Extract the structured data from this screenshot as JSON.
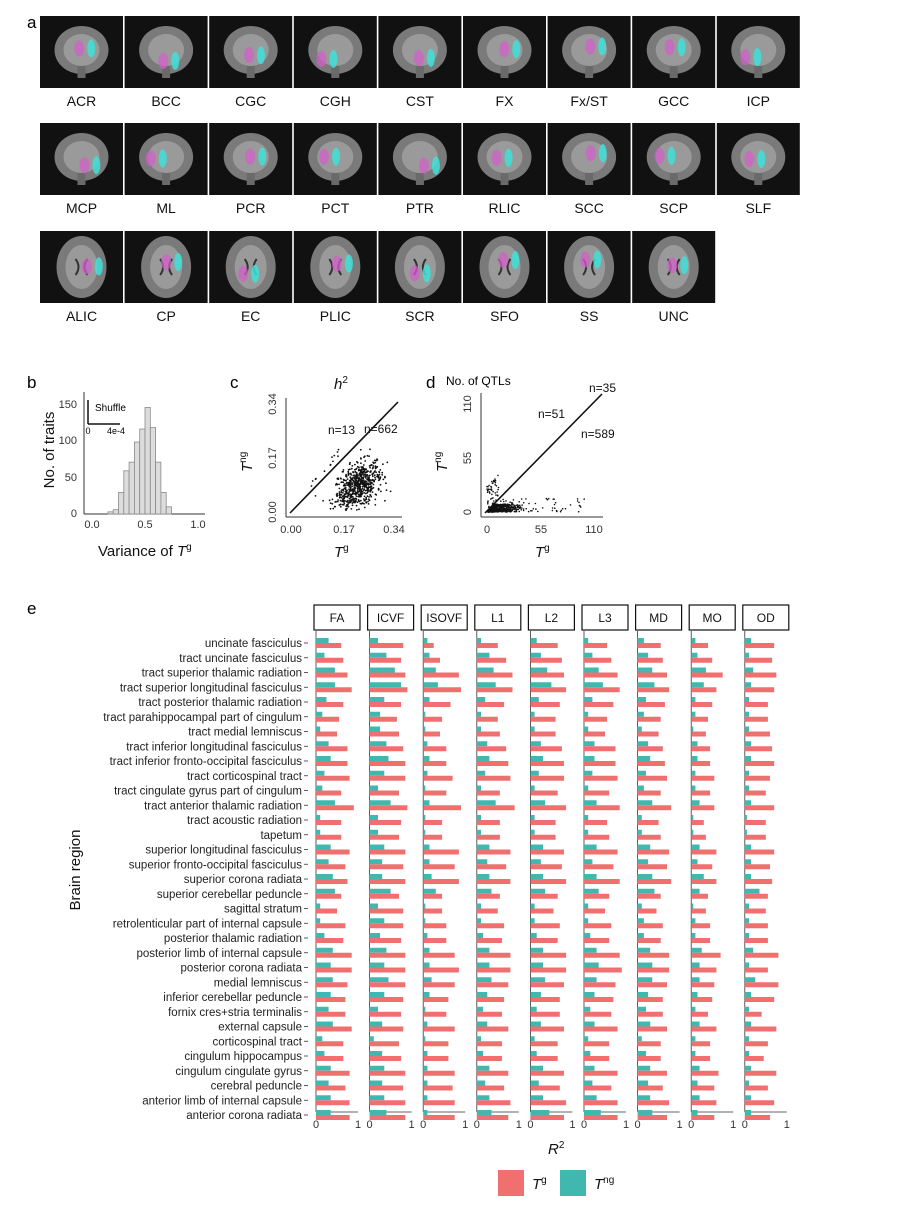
{
  "panel_a": {
    "label": "a",
    "tracts": [
      {
        "name": "ACR",
        "view": "coronal"
      },
      {
        "name": "BCC",
        "view": "coronal"
      },
      {
        "name": "CGC",
        "view": "coronal"
      },
      {
        "name": "CGH",
        "view": "coronal"
      },
      {
        "name": "CST",
        "view": "coronal"
      },
      {
        "name": "FX",
        "view": "coronal"
      },
      {
        "name": "Fx/ST",
        "view": "coronal"
      },
      {
        "name": "GCC",
        "view": "coronal"
      },
      {
        "name": "ICP",
        "view": "coronal"
      },
      {
        "name": "MCP",
        "view": "coronal"
      },
      {
        "name": "ML",
        "view": "coronal"
      },
      {
        "name": "PCR",
        "view": "coronal"
      },
      {
        "name": "PCT",
        "view": "coronal"
      },
      {
        "name": "PTR",
        "view": "coronal"
      },
      {
        "name": "RLIC",
        "view": "coronal"
      },
      {
        "name": "SCC",
        "view": "coronal"
      },
      {
        "name": "SCP",
        "view": "coronal"
      },
      {
        "name": "SLF",
        "view": "coronal"
      },
      {
        "name": "ALIC",
        "view": "axial"
      },
      {
        "name": "CP",
        "view": "axial"
      },
      {
        "name": "EC",
        "view": "axial"
      },
      {
        "name": "PLIC",
        "view": "axial"
      },
      {
        "name": "SCR",
        "view": "axial"
      },
      {
        "name": "SFO",
        "view": "axial"
      },
      {
        "name": "SS",
        "view": "axial"
      },
      {
        "name": "UNC",
        "view": "axial"
      }
    ],
    "colors": {
      "background": "#111111",
      "tissue": "#7a7a7a",
      "magenta": "#d060c8",
      "cyan": "#40e0d8"
    }
  },
  "panel_b": {
    "label": "b",
    "ylabel": "No. of traits",
    "xlabel_text": "Variance of ",
    "xlabel_sym": "T",
    "xlabel_sup": "g",
    "inset_label": "Shuffle",
    "inset_ticks": [
      "0",
      "4e-4"
    ],
    "y_ticks": [
      "0",
      "50",
      "100",
      "150"
    ],
    "x_ticks": [
      "0.0",
      "0.5",
      "1.0"
    ]
  },
  "panel_c": {
    "label": "c",
    "title_sym": "h",
    "title_sup": "2",
    "xlabel_sym": "T",
    "xlabel_sup": "g",
    "ylabel_sym": "T",
    "ylabel_sup": "ng",
    "ticks": [
      "0.00",
      "0.17",
      "0.34"
    ],
    "n_above": "n=13",
    "n_below": "n=662"
  },
  "panel_d": {
    "label": "d",
    "title": "No. of QTLs",
    "xlabel_sym": "T",
    "xlabel_sup": "g",
    "ylabel_sym": "T",
    "ylabel_sup": "ng",
    "ticks": [
      "0",
      "55",
      "110"
    ],
    "n_above": "n=51",
    "n_below": "n=589",
    "n_equal": "n=35"
  },
  "panel_e": {
    "label": "e",
    "ylabel": "Brain region",
    "xlabel_sym": "R",
    "xlabel_sup": "2",
    "x_ticks": [
      "0",
      "1"
    ],
    "legend": [
      {
        "sym": "T",
        "sup": "g",
        "color": "#f07070"
      },
      {
        "sym": "T",
        "sup": "ng",
        "color": "#40b8b0"
      }
    ]
  },
  "chart_data": [
    {
      "type": "bar",
      "title": "",
      "xlabel": "Variance of T^g",
      "ylabel": "No. of traits",
      "xlim": [
        0,
        1.0
      ],
      "ylim": [
        0,
        150
      ],
      "bin_edges": [
        0.15,
        0.2,
        0.25,
        0.3,
        0.35,
        0.4,
        0.45,
        0.5,
        0.55,
        0.6,
        0.65,
        0.7,
        0.75
      ],
      "counts": [
        3,
        6,
        30,
        60,
        72,
        100,
        118,
        148,
        120,
        72,
        30,
        10
      ],
      "inset": {
        "label": "Shuffle",
        "x_ticks": [
          "0",
          "4e-4"
        ]
      }
    },
    {
      "type": "scatter",
      "title": "h2",
      "xlabel": "T^g",
      "ylabel": "T^ng",
      "xlim": [
        0,
        0.34
      ],
      "ylim": [
        0,
        0.34
      ],
      "n_above_diagonal": 13,
      "n_below_diagonal": 662,
      "reference_line": "y = x"
    },
    {
      "type": "scatter",
      "title": "No. of QTLs",
      "xlabel": "T^g",
      "ylabel": "T^ng",
      "xlim": [
        0,
        110
      ],
      "ylim": [
        0,
        110
      ],
      "n_above_diagonal": 51,
      "n_below_diagonal": 589,
      "n_on_diagonal": 35,
      "reference_line": "y = x"
    },
    {
      "type": "bar",
      "orientation": "horizontal",
      "xlabel": "R^2",
      "ylabel": "Brain region",
      "xlim": [
        0,
        1
      ],
      "facets": [
        "FA",
        "ICVF",
        "ISOVF",
        "L1",
        "L2",
        "L3",
        "MD",
        "MO",
        "OD"
      ],
      "regions": [
        "uncinate fasciculus",
        "tract uncinate fasciculus",
        "tract superior thalamic radiation",
        "tract superior longitudinal fasciculus",
        "tract posterior thalamic radiation",
        "tract parahippocampal part of cingulum",
        "tract medial lemniscus",
        "tract inferior longitudinal fasciculus",
        "tract inferior fronto-occipital fasciculus",
        "tract corticospinal tract",
        "tract cingulate gyrus part of cingulum",
        "tract anterior thalamic radiation",
        "tract acoustic radiation",
        "tapetum",
        "superior longitudinal fasciculus",
        "superior fronto-occipital fasciculus",
        "superior corona radiata",
        "superior cerebellar peduncle",
        "sagittal stratum",
        "retrolenticular part of internal capsule",
        "posterior thalamic radiation",
        "posterior limb of internal capsule",
        "posterior corona radiata",
        "medial lemniscus",
        "inferior cerebellar peduncle",
        "fornix cres+stria terminalis",
        "external capsule",
        "corticospinal tract",
        "cingulum hippocampus",
        "cingulum cingulate gyrus",
        "cerebral peduncle",
        "anterior limb of internal capsule",
        "anterior corona radiata"
      ],
      "series": [
        {
          "name": "T^g",
          "values": [
            [
              0.6,
              0.65,
              0.75,
              0.85,
              0.65,
              0.55,
              0.5,
              0.75,
              0.75,
              0.8,
              0.6,
              0.9,
              0.6,
              0.6,
              0.8,
              0.7,
              0.75,
              0.6,
              0.5,
              0.7,
              0.65,
              0.85,
              0.85,
              0.75,
              0.7,
              0.7,
              0.85,
              0.65,
              0.65,
              0.8,
              0.7,
              0.8,
              0.8
            ],
            [
              0.8,
              0.75,
              0.85,
              0.9,
              0.75,
              0.65,
              0.7,
              0.8,
              0.85,
              0.85,
              0.7,
              0.9,
              0.75,
              0.7,
              0.85,
              0.8,
              0.85,
              0.7,
              0.8,
              0.8,
              0.75,
              0.85,
              0.85,
              0.85,
              0.8,
              0.75,
              0.8,
              0.7,
              0.75,
              0.85,
              0.8,
              0.85,
              0.85
            ],
            [
              0.25,
              0.4,
              0.85,
              0.9,
              0.65,
              0.45,
              0.4,
              0.55,
              0.55,
              0.7,
              0.55,
              0.9,
              0.45,
              0.45,
              0.85,
              0.75,
              0.85,
              0.45,
              0.45,
              0.55,
              0.55,
              0.75,
              0.85,
              0.75,
              0.6,
              0.55,
              0.75,
              0.6,
              0.6,
              0.75,
              0.7,
              0.75,
              0.75
            ],
            [
              0.5,
              0.7,
              0.85,
              0.85,
              0.65,
              0.5,
              0.55,
              0.7,
              0.75,
              0.8,
              0.55,
              0.9,
              0.55,
              0.55,
              0.8,
              0.7,
              0.8,
              0.55,
              0.5,
              0.65,
              0.6,
              0.8,
              0.8,
              0.75,
              0.65,
              0.6,
              0.75,
              0.6,
              0.6,
              0.75,
              0.65,
              0.8,
              0.75
            ],
            [
              0.65,
              0.75,
              0.8,
              0.85,
              0.7,
              0.6,
              0.6,
              0.75,
              0.8,
              0.8,
              0.65,
              0.85,
              0.6,
              0.6,
              0.8,
              0.75,
              0.85,
              0.65,
              0.55,
              0.7,
              0.65,
              0.85,
              0.85,
              0.8,
              0.7,
              0.7,
              0.8,
              0.65,
              0.65,
              0.8,
              0.7,
              0.85,
              0.8
            ],
            [
              0.55,
              0.65,
              0.8,
              0.85,
              0.7,
              0.55,
              0.5,
              0.75,
              0.75,
              0.8,
              0.6,
              0.85,
              0.55,
              0.6,
              0.8,
              0.7,
              0.85,
              0.6,
              0.5,
              0.65,
              0.6,
              0.85,
              0.9,
              0.75,
              0.7,
              0.65,
              0.8,
              0.6,
              0.6,
              0.8,
              0.65,
              0.8,
              0.8
            ],
            [
              0.55,
              0.6,
              0.7,
              0.75,
              0.65,
              0.55,
              0.5,
              0.6,
              0.65,
              0.7,
              0.55,
              0.8,
              0.5,
              0.55,
              0.75,
              0.7,
              0.8,
              0.55,
              0.45,
              0.6,
              0.55,
              0.75,
              0.75,
              0.7,
              0.6,
              0.6,
              0.7,
              0.55,
              0.55,
              0.7,
              0.6,
              0.75,
              0.7
            ],
            [
              0.4,
              0.5,
              0.75,
              0.6,
              0.5,
              0.4,
              0.35,
              0.45,
              0.45,
              0.55,
              0.45,
              0.55,
              0.3,
              0.35,
              0.6,
              0.5,
              0.6,
              0.4,
              0.35,
              0.45,
              0.45,
              0.7,
              0.6,
              0.55,
              0.5,
              0.4,
              0.6,
              0.45,
              0.45,
              0.65,
              0.55,
              0.6,
              0.55
            ],
            [
              0.7,
              0.65,
              0.75,
              0.7,
              0.55,
              0.55,
              0.6,
              0.65,
              0.7,
              0.6,
              0.5,
              0.7,
              0.5,
              0.5,
              0.7,
              0.6,
              0.65,
              0.55,
              0.5,
              0.55,
              0.55,
              0.8,
              0.55,
              0.8,
              0.7,
              0.4,
              0.75,
              0.55,
              0.45,
              0.75,
              0.55,
              0.7,
              0.6
            ]
          ]
        },
        {
          "name": "T^ng",
          "values": [
            [
              0.3,
              0.2,
              0.45,
              0.45,
              0.25,
              0.15,
              0.1,
              0.3,
              0.35,
              0.2,
              0.15,
              0.45,
              0.1,
              0.1,
              0.35,
              0.3,
              0.4,
              0.45,
              0.1,
              0.1,
              0.2,
              0.4,
              0.35,
              0.4,
              0.35,
              0.3,
              0.4,
              0.15,
              0.2,
              0.35,
              0.3,
              0.35,
              0.35
            ],
            [
              0.2,
              0.4,
              0.6,
              0.75,
              0.35,
              0.25,
              0.25,
              0.4,
              0.45,
              0.35,
              0.2,
              0.5,
              0.2,
              0.2,
              0.35,
              0.3,
              0.3,
              0.5,
              0.2,
              0.35,
              0.25,
              0.4,
              0.35,
              0.45,
              0.35,
              0.2,
              0.3,
              0.1,
              0.3,
              0.35,
              0.3,
              0.35,
              0.4
            ],
            [
              0.1,
              0.15,
              0.3,
              0.35,
              0.15,
              0.05,
              0.05,
              0.1,
              0.15,
              0.1,
              0.05,
              0.15,
              0.05,
              0.05,
              0.15,
              0.15,
              0.2,
              0.3,
              0.05,
              0.05,
              0.1,
              0.15,
              0.15,
              0.2,
              0.15,
              0.05,
              0.1,
              0.05,
              0.1,
              0.1,
              0.1,
              0.1,
              0.1
            ],
            [
              0.1,
              0.3,
              0.4,
              0.45,
              0.2,
              0.1,
              0.1,
              0.25,
              0.3,
              0.2,
              0.1,
              0.45,
              0.1,
              0.1,
              0.3,
              0.25,
              0.3,
              0.35,
              0.1,
              0.1,
              0.15,
              0.3,
              0.3,
              0.35,
              0.25,
              0.15,
              0.25,
              0.1,
              0.15,
              0.3,
              0.2,
              0.3,
              0.35
            ],
            [
              0.15,
              0.25,
              0.4,
              0.5,
              0.2,
              0.1,
              0.1,
              0.25,
              0.3,
              0.2,
              0.1,
              0.35,
              0.1,
              0.1,
              0.3,
              0.25,
              0.3,
              0.35,
              0.1,
              0.1,
              0.15,
              0.3,
              0.3,
              0.35,
              0.25,
              0.15,
              0.25,
              0.1,
              0.15,
              0.3,
              0.2,
              0.3,
              0.45
            ],
            [
              0.1,
              0.2,
              0.35,
              0.45,
              0.2,
              0.1,
              0.1,
              0.25,
              0.25,
              0.2,
              0.1,
              0.3,
              0.1,
              0.1,
              0.3,
              0.2,
              0.3,
              0.35,
              0.1,
              0.1,
              0.15,
              0.3,
              0.35,
              0.3,
              0.25,
              0.15,
              0.25,
              0.1,
              0.15,
              0.25,
              0.2,
              0.3,
              0.4
            ],
            [
              0.15,
              0.25,
              0.35,
              0.4,
              0.2,
              0.15,
              0.1,
              0.25,
              0.3,
              0.2,
              0.15,
              0.35,
              0.1,
              0.1,
              0.3,
              0.25,
              0.35,
              0.4,
              0.1,
              0.15,
              0.15,
              0.3,
              0.35,
              0.35,
              0.25,
              0.2,
              0.3,
              0.1,
              0.2,
              0.3,
              0.25,
              0.3,
              0.35
            ],
            [
              0.1,
              0.15,
              0.35,
              0.3,
              0.1,
              0.1,
              0.05,
              0.15,
              0.15,
              0.1,
              0.1,
              0.2,
              0.05,
              0.05,
              0.2,
              0.15,
              0.3,
              0.2,
              0.05,
              0.1,
              0.1,
              0.25,
              0.2,
              0.2,
              0.15,
              0.1,
              0.2,
              0.1,
              0.1,
              0.2,
              0.15,
              0.2,
              0.15
            ],
            [
              0.15,
              0.1,
              0.2,
              0.15,
              0.1,
              0.1,
              0.1,
              0.15,
              0.15,
              0.1,
              0.1,
              0.15,
              0.05,
              0.05,
              0.15,
              0.15,
              0.15,
              0.35,
              0.1,
              0.1,
              0.1,
              0.2,
              0.1,
              0.25,
              0.15,
              0.1,
              0.15,
              0.1,
              0.1,
              0.15,
              0.1,
              0.15,
              0.15
            ]
          ]
        }
      ]
    }
  ]
}
